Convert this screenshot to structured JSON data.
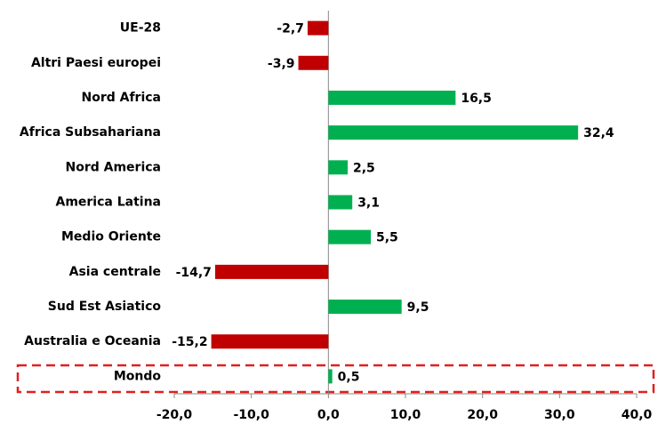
{
  "chart_data": {
    "type": "bar",
    "orientation": "horizontal",
    "categories": [
      "UE-28",
      "Altri Paesi europei",
      "Nord Africa",
      "Africa Subsahariana",
      "Nord America",
      "America Latina",
      "Medio Oriente",
      "Asia centrale",
      "Sud Est Asiatico",
      "Australia e Oceania",
      "Mondo"
    ],
    "values": [
      -2.7,
      -3.9,
      16.5,
      32.4,
      2.5,
      3.1,
      5.5,
      -14.7,
      9.5,
      -15.2,
      0.5
    ],
    "value_labels": [
      "-2,7",
      "-3,9",
      "16,5",
      "32,4",
      "2,5",
      "3,1",
      "5,5",
      "-14,7",
      "9,5",
      "-15,2",
      "0,5"
    ],
    "colors": [
      "#c00000",
      "#c00000",
      "#00b050",
      "#00b050",
      "#00b050",
      "#00b050",
      "#00b050",
      "#c00000",
      "#00b050",
      "#c00000",
      "#00b050"
    ],
    "xlim": [
      -20,
      40
    ],
    "xticks": [
      {
        "value": -20,
        "label": "-20,0"
      },
      {
        "value": -10,
        "label": "-10,0"
      },
      {
        "value": 0,
        "label": "0,0"
      },
      {
        "value": 10,
        "label": "10,0"
      },
      {
        "value": 20,
        "label": "20,0"
      },
      {
        "value": 30,
        "label": "30,0"
      },
      {
        "value": 40,
        "label": "40,0"
      }
    ]
  }
}
